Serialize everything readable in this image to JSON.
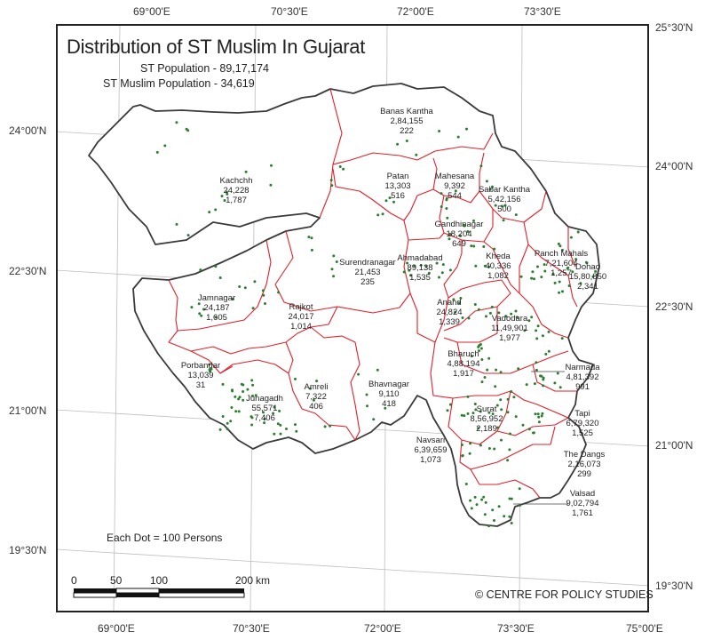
{
  "title": "Distribution of ST Muslim In Gujarat",
  "st_population": "ST Population - 89,17,174",
  "st_muslim_population": "ST Muslim Population - 34,619",
  "legend": "Each Dot = 100 Persons",
  "credit": "© CENTRE FOR POLICY STUDIES",
  "scale": {
    "ticks": [
      "0",
      "50",
      "100",
      "200"
    ],
    "unit": "km"
  },
  "grid": {
    "top": [
      "69°00'E",
      "70°30'E",
      "72°00'E",
      "73°30'E"
    ],
    "bottom": [
      "69°00'E",
      "70°30'E",
      "72°00'E",
      "73°30'E",
      "75°00'E"
    ],
    "left": [
      "24°00'N",
      "22°30'N",
      "21°00'N",
      "19°30'N"
    ],
    "right": [
      "25°30'N",
      "24°00'N",
      "22°30'N",
      "21°00'N",
      "19°30'N"
    ]
  },
  "colors": {
    "state_border": "#3a3a3a",
    "district_border": "#e0202a",
    "dot": "#2e7d32",
    "graticule": "#bdbdbd"
  },
  "districts": [
    {
      "name": "Banas Kantha",
      "st": "2,84,155",
      "muslim": "222"
    },
    {
      "name": "Kachchh",
      "st": "24,228",
      "muslim": "1,787"
    },
    {
      "name": "Patan",
      "st": "13,303",
      "muslim": "516"
    },
    {
      "name": "Mahesana",
      "st": "9,392",
      "muslim": "544"
    },
    {
      "name": "Sabar Kantha",
      "st": "5,42,156",
      "muslim": "500"
    },
    {
      "name": "Gandhinagar",
      "st": "18,204",
      "muslim": "649"
    },
    {
      "name": "Surendranagar",
      "st": "21,453",
      "muslim": "235"
    },
    {
      "name": "Ahmadabad",
      "st": "89,138",
      "muslim": "1,535"
    },
    {
      "name": "Kheda",
      "st": "40,336",
      "muslim": "1,082"
    },
    {
      "name": "Panch Mahals",
      "st": "7,21,604",
      "muslim": "1,257"
    },
    {
      "name": "Dohad",
      "st": "15,80,850",
      "muslim": "2,341"
    },
    {
      "name": "Jamnagar",
      "st": "24,187",
      "muslim": "1,605"
    },
    {
      "name": "Rajkot",
      "st": "24,017",
      "muslim": "1,014"
    },
    {
      "name": "Anand",
      "st": "24,824",
      "muslim": "1,339"
    },
    {
      "name": "Vadodara",
      "st": "11,49,901",
      "muslim": "1,977"
    },
    {
      "name": "Porbandar",
      "st": "13,039",
      "muslim": "31"
    },
    {
      "name": "Bhavnagar",
      "st": "9,110",
      "muslim": "418"
    },
    {
      "name": "Bharuch",
      "st": "4,88,194",
      "muslim": "1,917"
    },
    {
      "name": "Narmada",
      "st": "4,81,392",
      "muslim": "991"
    },
    {
      "name": "Amreli",
      "st": "7,322",
      "muslim": "406"
    },
    {
      "name": "Junagadh",
      "st": "55,571",
      "muslim": "7,406"
    },
    {
      "name": "Tapi",
      "st": "6,79,320",
      "muslim": "1,525"
    },
    {
      "name": "Surat",
      "st": "8,56,952",
      "muslim": "2,189"
    },
    {
      "name": "Navsari",
      "st": "6,39,659",
      "muslim": "1,073"
    },
    {
      "name": "The Dangs",
      "st": "2,16,073",
      "muslim": "299"
    },
    {
      "name": "Valsad",
      "st": "9,02,794",
      "muslim": "1,761"
    }
  ]
}
